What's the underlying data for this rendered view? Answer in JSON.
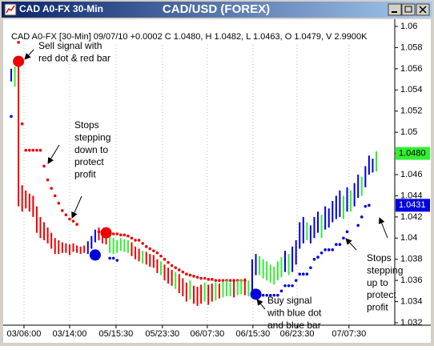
{
  "window_title": "CAD A0-FX 30-Min",
  "chart_data": {
    "type": "ohlc",
    "title": "CAD/USD (FOREX)",
    "subtitle": "CAD A0-FX [30-Min] 09/07/10 +0.0002 C 1.0480, H 1.0482, L 1.0463, O 1.0479, V 2.9900K",
    "palette": {
      "r": "#ee0000",
      "g": "#33ee33",
      "b": "#0000dd"
    },
    "ylim": [
      1.032,
      1.06
    ],
    "yticks": [
      1.032,
      1.034,
      1.036,
      1.038,
      1.04,
      1.042,
      1.044,
      1.046,
      1.048,
      1.05,
      1.052,
      1.054,
      1.056,
      1.058,
      1.06
    ],
    "xticks": [
      {
        "value": 3.5,
        "label": "03/06:00"
      },
      {
        "value": 16,
        "label": "03/14:00"
      },
      {
        "value": 28.7,
        "label": "05/15:30"
      },
      {
        "value": 41.4,
        "label": "05/23:30"
      },
      {
        "value": 53.7,
        "label": "06/07:30"
      },
      {
        "value": 66.2,
        "label": "06/15:30"
      },
      {
        "value": 78.3,
        "label": "06/23:30"
      },
      {
        "value": 92.5,
        "label": "07/07:30"
      }
    ],
    "high": [
      1.056,
      1.0562,
      1.0565,
      1.045,
      1.0445,
      1.0442,
      1.044,
      1.043,
      1.042,
      1.0415,
      1.041,
      1.0405,
      1.04,
      1.0398,
      1.0396,
      1.0395,
      1.0394,
      1.0395,
      1.0393,
      1.0392,
      1.0393,
      1.0397,
      1.0402,
      1.0408,
      1.041,
      1.0406,
      1.0405,
      1.0402,
      1.04,
      1.0398,
      1.04,
      1.0399,
      1.0398,
      1.0396,
      1.0392,
      1.039,
      1.0388,
      1.0387,
      1.0385,
      1.0384,
      1.038,
      1.0378,
      1.0375,
      1.0372,
      1.037,
      1.0368,
      1.0366,
      1.0362,
      1.0358,
      1.036,
      1.0355,
      1.0354,
      1.0356,
      1.0358,
      1.0356,
      1.0357,
      1.0358,
      1.0357,
      1.0359,
      1.036,
      1.0358,
      1.036,
      1.036,
      1.0361,
      1.0362,
      1.036,
      1.038,
      1.0385,
      1.0383,
      1.038,
      1.0378,
      1.0375,
      1.0373,
      1.0378,
      1.0382,
      1.0388,
      1.0385,
      1.0392,
      1.0398,
      1.0415,
      1.042,
      1.0415,
      1.0412,
      1.042,
      1.0425,
      1.0422,
      1.043,
      1.0428,
      1.0435,
      1.044,
      1.0445,
      1.044,
      1.0448,
      1.0445,
      1.0452,
      1.046,
      1.0458,
      1.0468,
      1.0478,
      1.0475,
      1.0482
    ],
    "low": [
      1.0548,
      1.0543,
      1.043,
      1.0425,
      1.0428,
      1.0425,
      1.042,
      1.0405,
      1.04,
      1.0398,
      1.0395,
      1.039,
      1.0385,
      1.0385,
      1.0386,
      1.0386,
      1.0384,
      1.0387,
      1.0386,
      1.0385,
      1.0386,
      1.0385,
      1.039,
      1.0396,
      1.0398,
      1.0395,
      1.0394,
      1.0386,
      1.0385,
      1.0386,
      1.0388,
      1.0387,
      1.0386,
      1.0383,
      1.038,
      1.0378,
      1.0376,
      1.0375,
      1.0373,
      1.0372,
      1.0367,
      1.0365,
      1.036,
      1.0357,
      1.0355,
      1.0352,
      1.0348,
      1.0345,
      1.034,
      1.0342,
      1.0338,
      1.0336,
      1.0338,
      1.034,
      1.0337,
      1.034,
      1.0341,
      1.0343,
      1.0344,
      1.0345,
      1.0345,
      1.0344,
      1.0346,
      1.0347,
      1.0346,
      1.0345,
      1.0348,
      1.0365,
      1.0365,
      1.0362,
      1.036,
      1.0358,
      1.0356,
      1.036,
      1.0363,
      1.0368,
      1.0365,
      1.0368,
      1.0375,
      1.039,
      1.0395,
      1.0398,
      1.0395,
      1.04,
      1.0405,
      1.04,
      1.0408,
      1.041,
      1.0415,
      1.0418,
      1.042,
      1.0418,
      1.0425,
      1.0425,
      1.043,
      1.0438,
      1.044,
      1.0448,
      1.046,
      1.0462,
      1.0463
    ],
    "bar_colors": [
      "b",
      "g",
      "r",
      "r",
      "r",
      "r",
      "r",
      "r",
      "r",
      "r",
      "r",
      "r",
      "r",
      "r",
      "r",
      "r",
      "r",
      "r",
      "r",
      "r",
      "r",
      "b",
      "b",
      "b",
      "r",
      "r",
      "r",
      "g",
      "g",
      "g",
      "g",
      "g",
      "g",
      "r",
      "r",
      "r",
      "g",
      "r",
      "r",
      "r",
      "r",
      "g",
      "r",
      "r",
      "r",
      "g",
      "r",
      "r",
      "r",
      "g",
      "r",
      "r",
      "r",
      "g",
      "r",
      "r",
      "g",
      "r",
      "g",
      "g",
      "g",
      "r",
      "g",
      "g",
      "r",
      "g",
      "b",
      "b",
      "g",
      "g",
      "g",
      "g",
      "g",
      "g",
      "g",
      "b",
      "g",
      "b",
      "b",
      "b",
      "b",
      "g",
      "b",
      "b",
      "b",
      "g",
      "b",
      "b",
      "b",
      "b",
      "b",
      "g",
      "b",
      "g",
      "b",
      "b",
      "g",
      "b",
      "b",
      "b",
      "g"
    ],
    "stops": [
      {
        "color": "#ee0000",
        "values": [
          null,
          null,
          1.0585,
          1.0508,
          1.0483,
          1.0483,
          1.0483,
          1.0483,
          1.0483,
          1.0468,
          1.0455,
          1.0447,
          1.044,
          1.0433,
          1.0426,
          1.0422,
          1.0418,
          1.0416,
          1.0413,
          null,
          null,
          null,
          null,
          null,
          1.0406,
          1.0406,
          1.0405,
          1.0405,
          1.0404,
          1.0404,
          1.0403,
          1.0403,
          1.0402,
          1.04,
          1.0398,
          1.0398,
          1.0395,
          1.0392,
          1.039,
          1.0388,
          1.0386,
          1.0383,
          1.038,
          1.0377,
          1.0374,
          1.0372,
          1.037,
          1.0368,
          1.0366,
          1.0365,
          1.0364,
          1.0363,
          1.0362,
          1.0362,
          1.0361,
          1.0361,
          1.036,
          1.036,
          1.036,
          1.036,
          1.036,
          1.036,
          1.036,
          1.036,
          1.036,
          null,
          null,
          null,
          null,
          null,
          null,
          null,
          null,
          null,
          null,
          null,
          null,
          null,
          null,
          null,
          null,
          null,
          null,
          null,
          null,
          null,
          null,
          null,
          null,
          null,
          null,
          null,
          null,
          null,
          null,
          null,
          null,
          null,
          null,
          null,
          null
        ]
      },
      {
        "color": "#0000dd",
        "values": [
          1.0515,
          null,
          null,
          null,
          null,
          null,
          null,
          null,
          null,
          null,
          null,
          null,
          null,
          null,
          null,
          null,
          null,
          null,
          null,
          null,
          null,
          null,
          null,
          1.0384,
          null,
          null,
          null,
          1.0381,
          1.0381,
          1.0379,
          null,
          null,
          null,
          null,
          null,
          null,
          null,
          null,
          null,
          null,
          null,
          null,
          null,
          null,
          null,
          null,
          null,
          null,
          null,
          null,
          null,
          null,
          null,
          null,
          null,
          null,
          null,
          null,
          null,
          null,
          null,
          null,
          null,
          null,
          null,
          null,
          1.0346,
          1.0346,
          1.0346,
          1.0346,
          1.0346,
          1.0346,
          1.0346,
          1.0346,
          1.035,
          1.0355,
          1.0355,
          1.0355,
          1.036,
          1.0366,
          1.0366,
          1.0366,
          1.0372,
          1.038,
          1.0382,
          1.0386,
          1.0389,
          1.0389,
          1.0389,
          1.0394,
          1.0394,
          1.04,
          1.0406,
          null,
          null,
          1.0412,
          1.042,
          1.043,
          1.0431,
          null,
          null
        ]
      }
    ],
    "signals": [
      {
        "index": 2,
        "value": 1.0567,
        "color": "r"
      },
      {
        "index": 26,
        "value": 1.0405,
        "color": "r"
      },
      {
        "index": 23,
        "value": 1.0384,
        "color": "b"
      },
      {
        "index": 67,
        "value": 1.0347,
        "color": "b"
      }
    ],
    "last_close": {
      "value": 1.048,
      "label": "1.0480"
    },
    "last_stop": {
      "value": 1.0431,
      "label": "1.0431"
    },
    "annotations": [
      [
        "Sell signal with",
        "red dot & red bar"
      ],
      [
        "Stops",
        "stepping",
        "down to",
        "protect",
        "profit"
      ],
      [
        "Buy signal",
        "with blue dot",
        "and blue bar"
      ],
      [
        "Stops",
        "stepping",
        "up to",
        "protect",
        "profit"
      ]
    ]
  }
}
